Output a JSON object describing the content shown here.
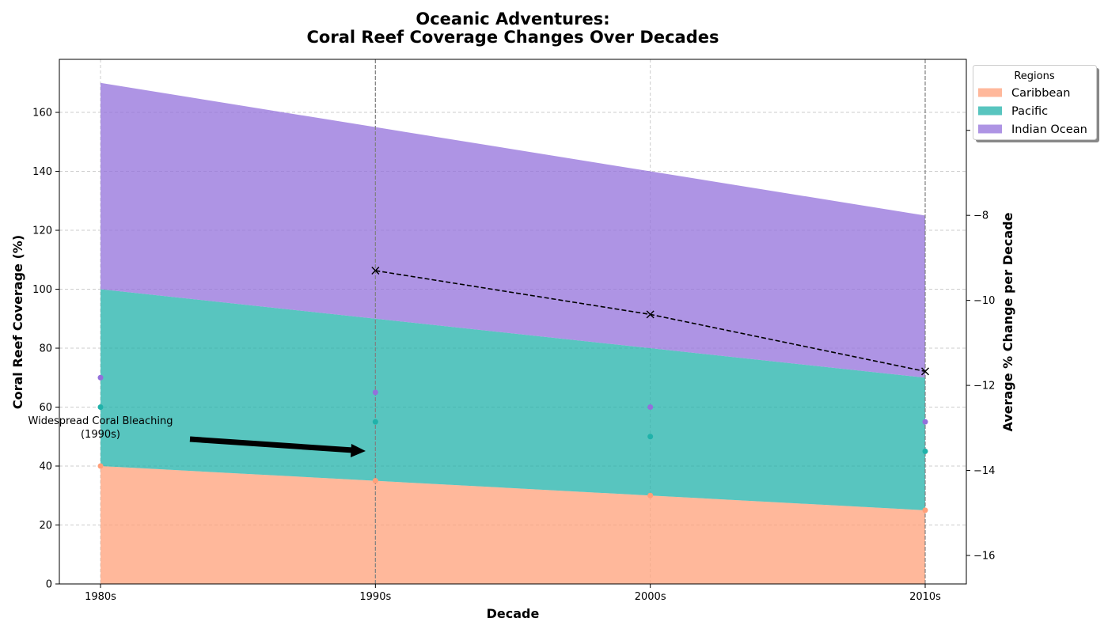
{
  "chart_data": {
    "type": "area",
    "stacked": true,
    "title_line1": "Oceanic Adventures:",
    "title_line2": "Coral Reef Coverage Changes Over Decades",
    "xlabel": "Decade",
    "ylabel": "Coral Reef Coverage (%)",
    "y2label": "Average % Change per Decade",
    "categories": [
      "1980s",
      "1990s",
      "2000s",
      "2010s"
    ],
    "ylim": [
      0,
      178
    ],
    "yticks": [
      0,
      20,
      40,
      60,
      80,
      100,
      120,
      140,
      160
    ],
    "y2lim": [
      -16.67,
      -4.33
    ],
    "y2ticks": [
      -16,
      -14,
      -12,
      -10,
      -8,
      -6
    ],
    "y2tick_labels": [
      "−16",
      "−14",
      "−12",
      "−10",
      "−8",
      "−6"
    ],
    "series": [
      {
        "name": "Caribbean",
        "values": [
          40,
          35,
          30,
          25
        ],
        "fill": "#FFA07A",
        "marker": "#FFA07A"
      },
      {
        "name": "Pacific",
        "values": [
          60,
          55,
          50,
          45
        ],
        "fill": "#20B2AA",
        "marker": "#20B2AA"
      },
      {
        "name": "Indian Ocean",
        "values": [
          70,
          65,
          60,
          55
        ],
        "fill": "#9370DB",
        "marker": "#9370DB"
      }
    ],
    "avg_change": {
      "categories": [
        "1990s",
        "2000s",
        "2010s"
      ],
      "values": [
        -9.3,
        -10.33,
        -11.67
      ]
    },
    "vlines_at": [
      "1990s",
      "2010s"
    ],
    "annotation": {
      "line1": "Widespread Coral Bleaching",
      "line2": "(1990s)",
      "points_to": "1990s",
      "points_to_value": 45
    },
    "legend": {
      "title": "Regions",
      "location": "upper-right-outside"
    },
    "grid": true
  }
}
